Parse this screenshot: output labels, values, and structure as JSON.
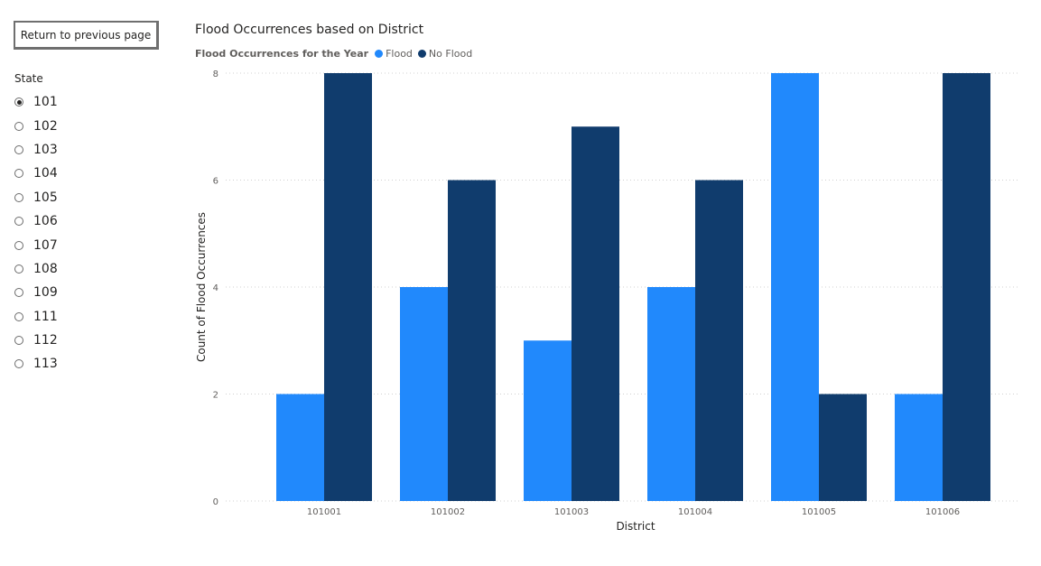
{
  "back_button": {
    "label": "Return to previous page"
  },
  "slicer": {
    "title": "State",
    "selected": "101",
    "items": [
      "101",
      "102",
      "103",
      "104",
      "105",
      "106",
      "107",
      "108",
      "109",
      "111",
      "112",
      "113"
    ]
  },
  "chart_data": {
    "type": "bar",
    "title": "Flood Occurrences based on District",
    "legend_title": "Flood Occurrences for the Year",
    "legend_position": "top-left",
    "xlabel": "District",
    "ylabel": "Count of Flood Occurrences",
    "categories": [
      "101001",
      "101002",
      "101003",
      "101004",
      "101005",
      "101006"
    ],
    "series": [
      {
        "name": "Flood",
        "color": "#2189fc",
        "values": [
          2,
          4,
          3,
          4,
          8,
          2
        ]
      },
      {
        "name": "No Flood",
        "color": "#103c6d",
        "values": [
          8,
          6,
          7,
          6,
          2,
          8
        ]
      }
    ],
    "ylim": [
      0,
      8
    ],
    "yticks": [
      0,
      2,
      4,
      6,
      8
    ],
    "grid": true
  }
}
